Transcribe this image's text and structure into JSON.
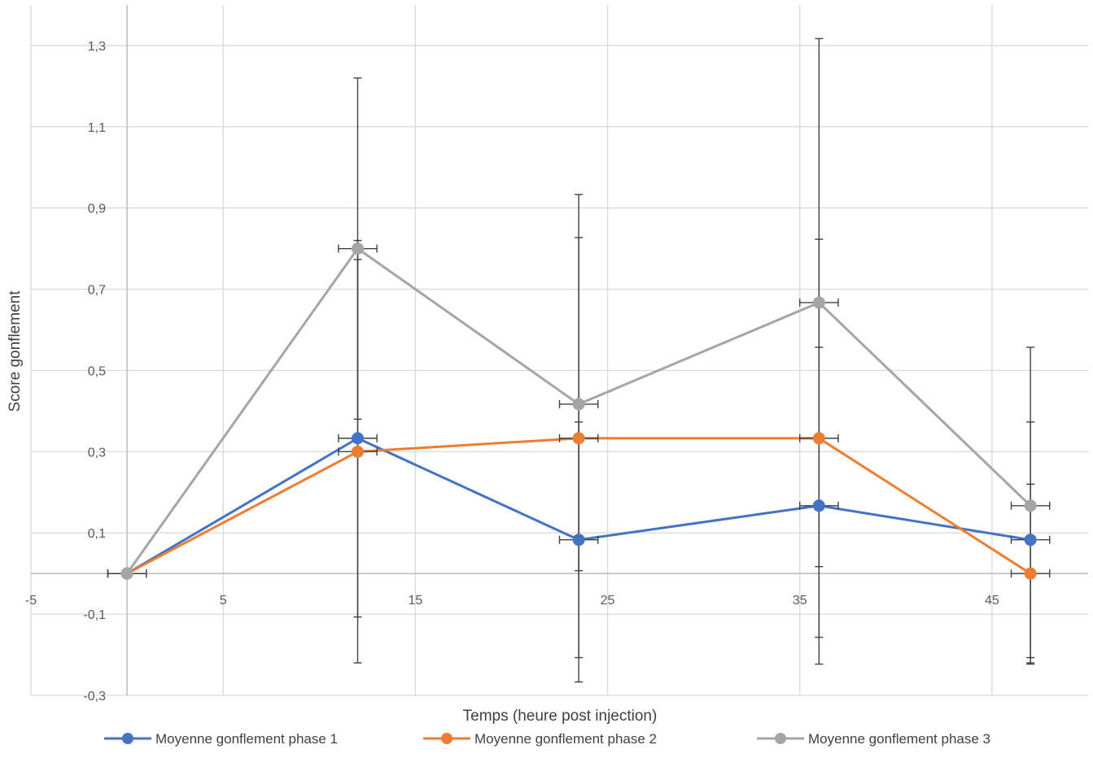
{
  "chart_data": {
    "type": "scatter",
    "title": "",
    "xlabel": "Temps (heure post injection)",
    "ylabel": "Score gonflement",
    "xlim": [
      -5,
      50
    ],
    "ylim": [
      -0.3,
      1.4
    ],
    "x_ticks": [
      -5,
      5,
      15,
      25,
      35,
      45
    ],
    "x_tick_labels": [
      "-5",
      "5",
      "15",
      "25",
      "35",
      "45"
    ],
    "y_ticks": [
      -0.3,
      -0.1,
      0.1,
      0.3,
      0.5,
      0.7,
      0.9,
      1.1,
      1.3
    ],
    "y_tick_labels": [
      "-0,3",
      "-0,1",
      "0,1",
      "0,3",
      "0,5",
      "0,7",
      "0,9",
      "1,1",
      "1,3"
    ],
    "x_axis_crosses_y_at": 0,
    "y_axis_crosses_x_at": 0,
    "grid": true,
    "legend_position": "bottom",
    "series": [
      {
        "name": "Moyenne gonflement phase 1",
        "color": "#4472C4",
        "x": [
          0,
          12,
          23.5,
          36,
          47
        ],
        "y": [
          0,
          0.333,
          0.083,
          0.167,
          0.083
        ],
        "y_err": [
          0,
          0.44,
          0.29,
          0.39,
          0.29
        ],
        "x_err": [
          1,
          1,
          1,
          1,
          1
        ]
      },
      {
        "name": "Moyenne gonflement phase 2",
        "color": "#ED7D31",
        "x": [
          0,
          12,
          23.5,
          36,
          47
        ],
        "y": [
          0,
          0.3,
          0.333,
          0.333,
          0
        ],
        "y_err": [
          0,
          0.52,
          0.6,
          0.49,
          0.22
        ],
        "x_err": [
          1,
          1,
          1,
          1,
          1
        ]
      },
      {
        "name": "Moyenne gonflement phase 3",
        "color": "#A5A5A5",
        "x": [
          0,
          12,
          23.5,
          36,
          47
        ],
        "y": [
          0,
          0.8,
          0.417,
          0.667,
          0.167
        ],
        "y_err": [
          0,
          0.42,
          0.41,
          0.65,
          0.39
        ],
        "x_err": [
          1,
          1,
          1,
          1,
          1
        ]
      }
    ]
  }
}
